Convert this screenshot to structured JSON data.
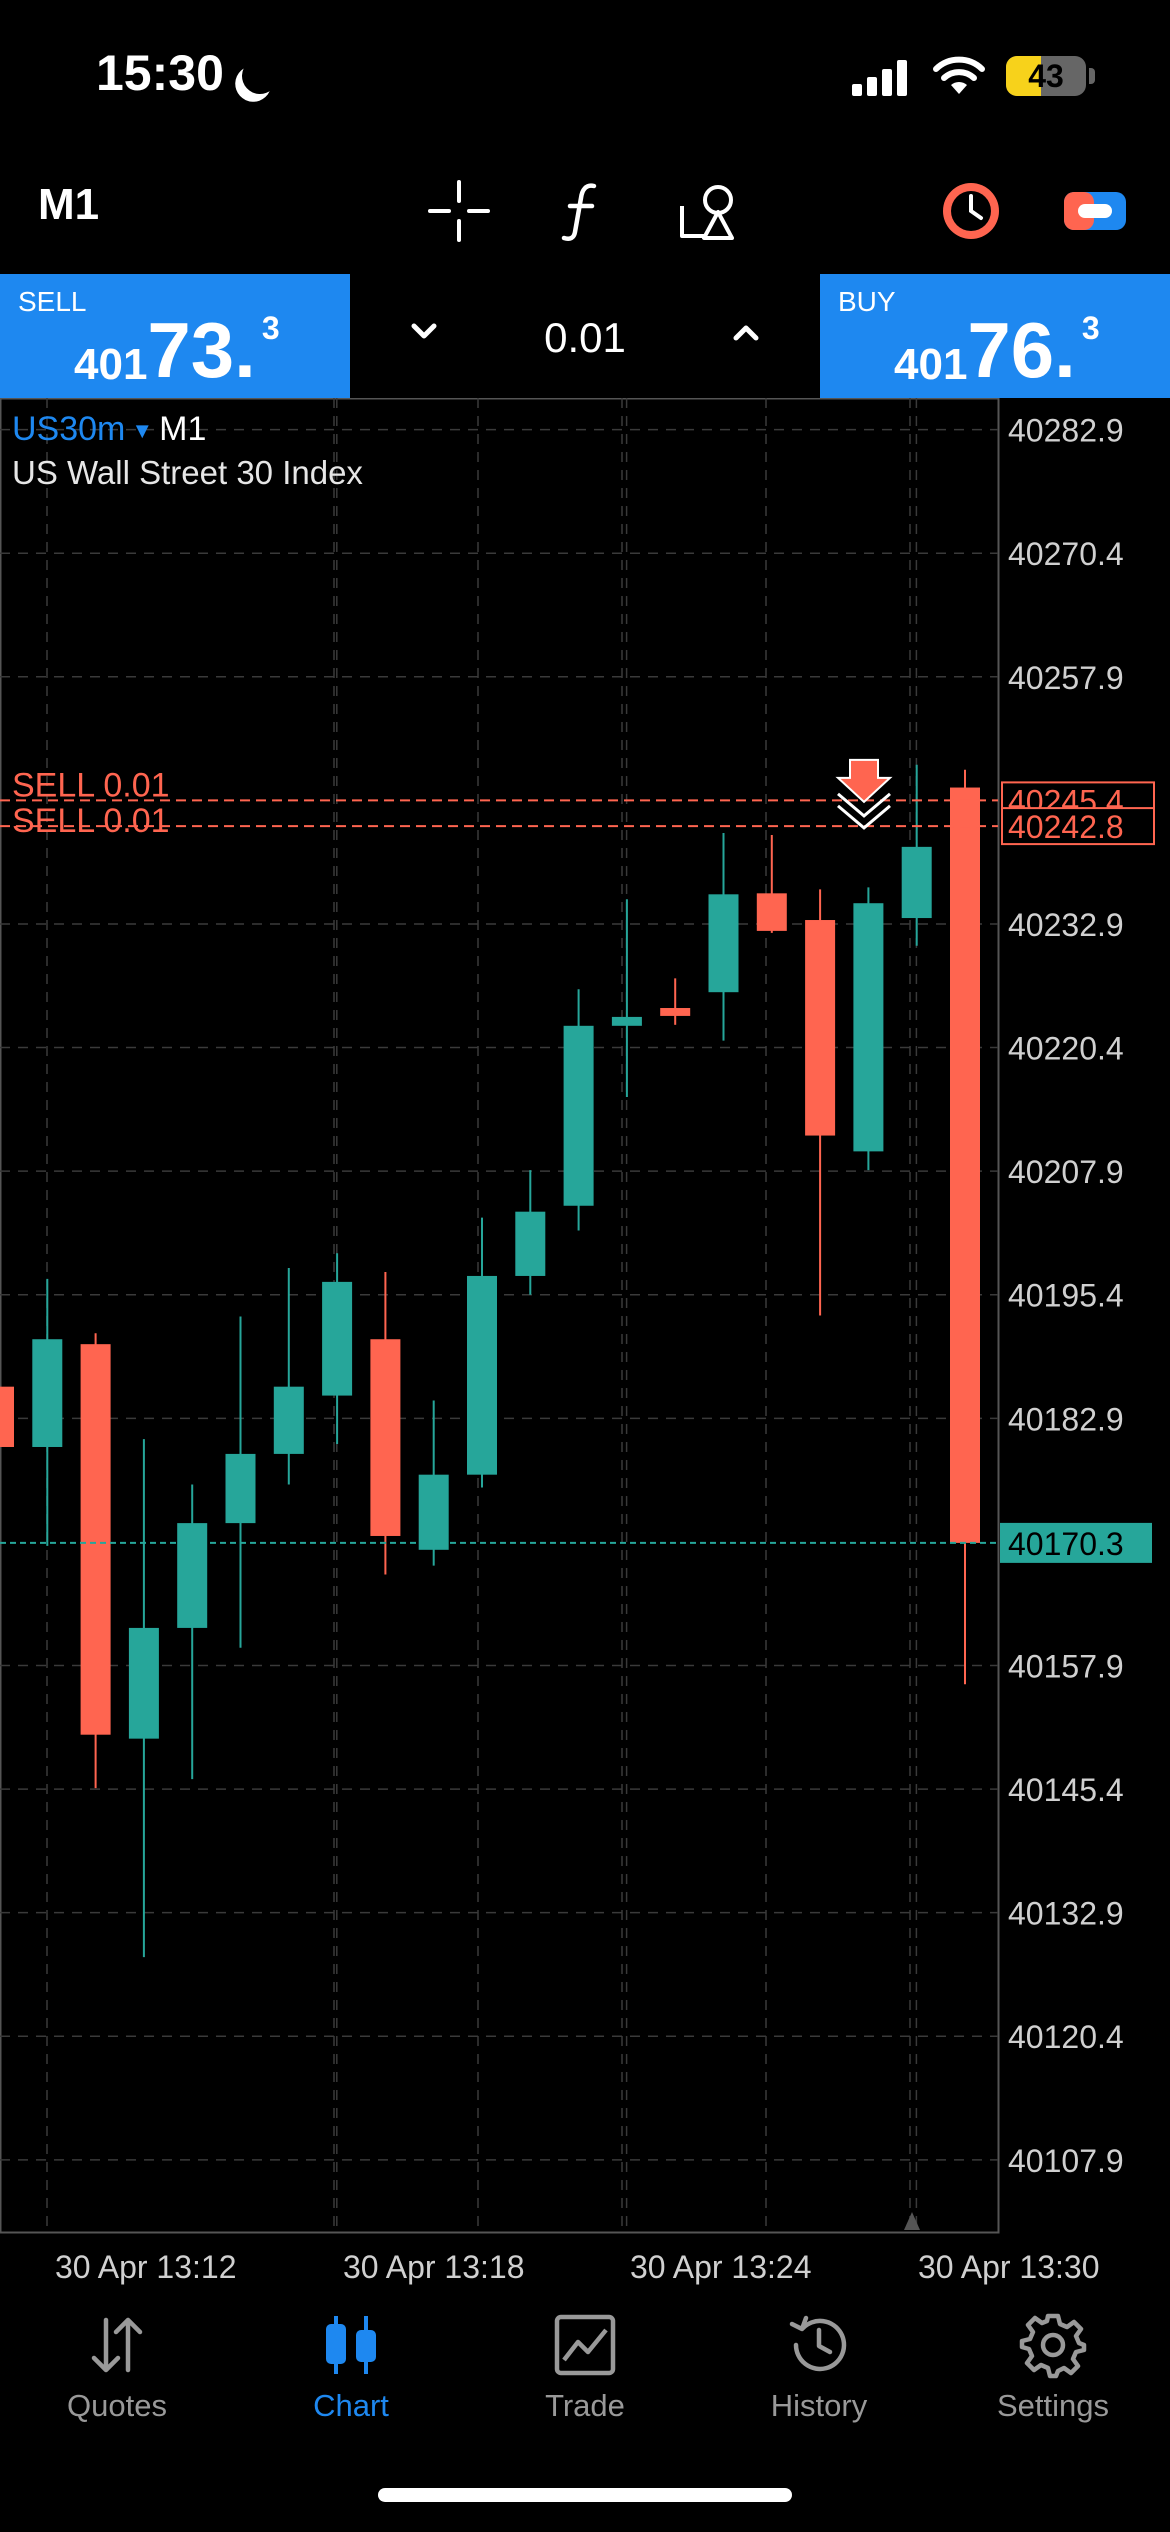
{
  "status_bar": {
    "time": "15:30",
    "battery_level": "43"
  },
  "toolbar": {
    "timeframe": "M1",
    "icons": [
      "crosshair-icon",
      "indicator-f-icon",
      "objects-icon",
      "clock-icon",
      "toggle-icon"
    ]
  },
  "trade_panel": {
    "sell_label": "SELL",
    "sell_price_small": "401",
    "sell_price_big": "73.",
    "sell_price_sup": "3",
    "buy_label": "BUY",
    "buy_price_small": "401",
    "buy_price_big": "76.",
    "buy_price_sup": "3",
    "lot_size": "0.01"
  },
  "chart_header": {
    "symbol": "US30m",
    "timeframe": "M1",
    "description": "US Wall Street 30 Index"
  },
  "colors": {
    "bull": "#26a69a",
    "bear": "#ff6550",
    "accent": "#1e88f0",
    "grid": "#3a3a3a",
    "axis_text": "#d0d0d0"
  },
  "chart_data": {
    "type": "candlestick",
    "ylim": [
      40100.6,
      40286.1
    ],
    "y_ticks": [
      "40282.9",
      "40270.4",
      "40257.9",
      "40232.9",
      "40220.4",
      "40207.9",
      "40195.4",
      "40182.9",
      "40157.9",
      "40145.4",
      "40132.9",
      "40120.4",
      "40107.9"
    ],
    "x_labels": [
      "30 Apr 13:12",
      "30 Apr 13:18",
      "30 Apr 13:24",
      "30 Apr 13:30"
    ],
    "candles": [
      {
        "o": 40186.1,
        "h": 40188.0,
        "l": 40178.5,
        "c": 40180.0
      },
      {
        "o": 40180.0,
        "h": 40197.0,
        "l": 40170.0,
        "c": 40190.9
      },
      {
        "o": 40190.4,
        "h": 40191.5,
        "l": 40145.5,
        "c": 40150.9
      },
      {
        "o": 40150.5,
        "h": 40180.8,
        "l": 40128.4,
        "c": 40161.7
      },
      {
        "o": 40161.7,
        "h": 40176.2,
        "l": 40146.4,
        "c": 40172.3
      },
      {
        "o": 40172.3,
        "h": 40193.2,
        "l": 40159.7,
        "c": 40179.3
      },
      {
        "o": 40179.3,
        "h": 40198.1,
        "l": 40176.2,
        "c": 40186.1
      },
      {
        "o": 40185.2,
        "h": 40199.6,
        "l": 40180.3,
        "c": 40196.7
      },
      {
        "o": 40190.9,
        "h": 40197.7,
        "l": 40167.1,
        "c": 40171.0
      },
      {
        "o": 40169.6,
        "h": 40184.7,
        "l": 40168.0,
        "c": 40177.2
      },
      {
        "o": 40177.2,
        "h": 40203.2,
        "l": 40175.9,
        "c": 40197.3
      },
      {
        "o": 40197.3,
        "h": 40208.0,
        "l": 40195.4,
        "c": 40203.8
      },
      {
        "o": 40204.4,
        "h": 40226.3,
        "l": 40201.9,
        "c": 40222.6
      },
      {
        "o": 40222.6,
        "h": 40235.4,
        "l": 40215.4,
        "c": 40223.5
      },
      {
        "o": 40224.4,
        "h": 40227.4,
        "l": 40222.7,
        "c": 40223.6
      },
      {
        "o": 40226.0,
        "h": 40242.1,
        "l": 40221.1,
        "c": 40235.9
      },
      {
        "o": 40236.0,
        "h": 40241.9,
        "l": 40232.0,
        "c": 40232.2
      },
      {
        "o": 40233.3,
        "h": 40236.4,
        "l": 40193.3,
        "c": 40211.5
      },
      {
        "o": 40209.9,
        "h": 40236.6,
        "l": 40208.0,
        "c": 40235.0
      },
      {
        "o": 40233.5,
        "h": 40249.0,
        "l": 40230.7,
        "c": 40240.7
      },
      {
        "o": 40246.7,
        "h": 40248.5,
        "l": 40156.0,
        "c": 40170.3
      }
    ],
    "current_price": "40170.3",
    "positions": [
      {
        "label": "SELL 0.01",
        "price": 40245.4,
        "price_label": "40245.4"
      },
      {
        "label": "SELL 0.01",
        "price": 40242.8,
        "price_label": "40242.8"
      }
    ]
  },
  "tabs": [
    {
      "label": "Quotes",
      "icon": "arrows-updown-icon",
      "active": false
    },
    {
      "label": "Chart",
      "icon": "candles-icon",
      "active": true
    },
    {
      "label": "Trade",
      "icon": "trade-chart-icon",
      "active": false
    },
    {
      "label": "History",
      "icon": "history-clock-icon",
      "active": false
    },
    {
      "label": "Settings",
      "icon": "gear-icon",
      "active": false
    }
  ]
}
